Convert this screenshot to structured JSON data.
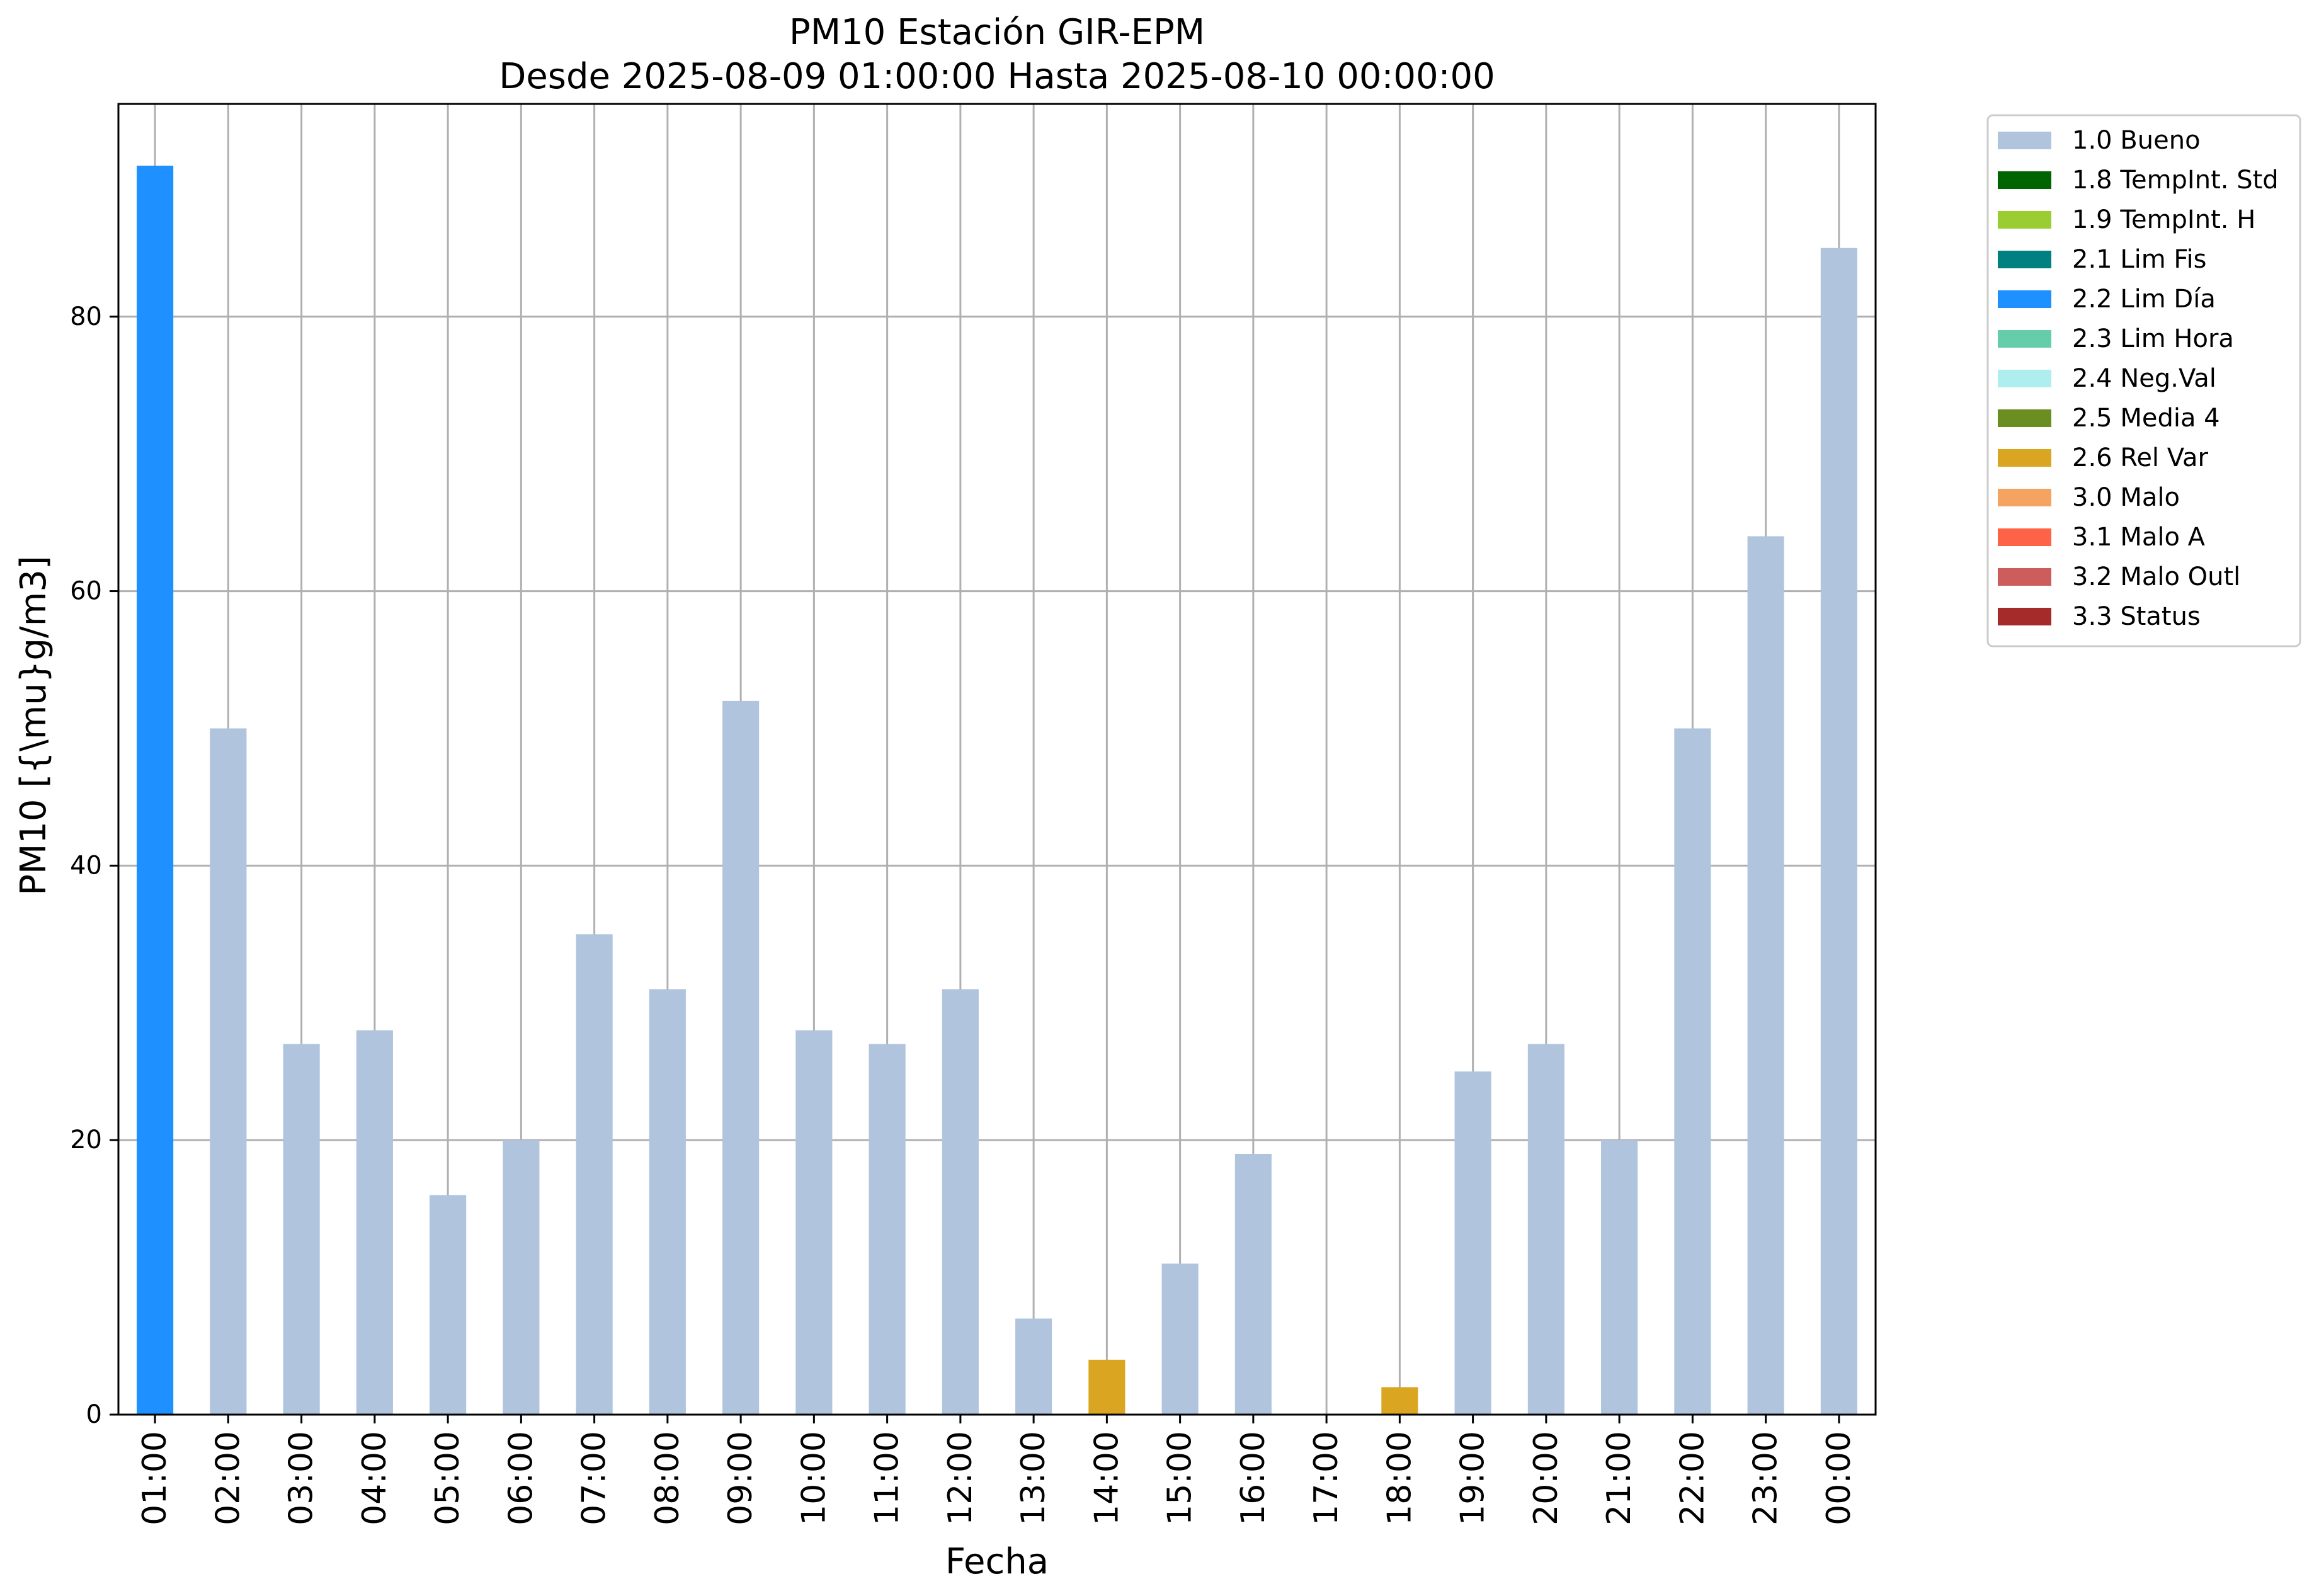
{
  "chart_data": {
    "type": "bar",
    "title": "PM10 Estación GIR-EPM",
    "subtitle": "Desde 2025-08-09 01:00:00 Hasta 2025-08-10 00:00:00",
    "xlabel": "Fecha",
    "ylabel": "PM10 [{\\mu}g/m3]",
    "ylim": [
      0,
      95.5
    ],
    "yticks": [
      0,
      20,
      40,
      60,
      80
    ],
    "grid": true,
    "legend_position": "outside-right-top",
    "categories": [
      "01:00",
      "02:00",
      "03:00",
      "04:00",
      "05:00",
      "06:00",
      "07:00",
      "08:00",
      "09:00",
      "10:00",
      "11:00",
      "12:00",
      "13:00",
      "14:00",
      "15:00",
      "16:00",
      "17:00",
      "18:00",
      "19:00",
      "20:00",
      "21:00",
      "22:00",
      "23:00",
      "00:00"
    ],
    "values": [
      91,
      50,
      27,
      28,
      16,
      20,
      35,
      31,
      52,
      28,
      27,
      31,
      7,
      4,
      11,
      19,
      0,
      2,
      25,
      27,
      20,
      50,
      64,
      85
    ],
    "flags": [
      "2.2 Lim Día",
      "1.0 Bueno",
      "1.0 Bueno",
      "1.0 Bueno",
      "1.0 Bueno",
      "1.0 Bueno",
      "1.0 Bueno",
      "1.0 Bueno",
      "1.0 Bueno",
      "1.0 Bueno",
      "1.0 Bueno",
      "1.0 Bueno",
      "1.0 Bueno",
      "2.6 Rel Var",
      "1.0 Bueno",
      "1.0 Bueno",
      "1.0 Bueno",
      "2.6 Rel Var",
      "1.0 Bueno",
      "1.0 Bueno",
      "1.0 Bueno",
      "1.0 Bueno",
      "1.0 Bueno",
      "1.0 Bueno"
    ],
    "legend": [
      {
        "label": "1.0 Bueno",
        "color": "#b0c4de"
      },
      {
        "label": "1.8 TempInt. Std",
        "color": "#006400"
      },
      {
        "label": "1.9 TempInt. H",
        "color": "#9acd32"
      },
      {
        "label": "2.1 Lim Fis",
        "color": "#008080"
      },
      {
        "label": "2.2 Lim Día",
        "color": "#1e90ff"
      },
      {
        "label": "2.3 Lim Hora",
        "color": "#66cdaa"
      },
      {
        "label": "2.4 Neg.Val",
        "color": "#afeeee"
      },
      {
        "label": "2.5 Media 4",
        "color": "#6b8e23"
      },
      {
        "label": "2.6 Rel Var",
        "color": "#daa520"
      },
      {
        "label": "3.0 Malo",
        "color": "#f4a460"
      },
      {
        "label": "3.1 Malo A",
        "color": "#ff6347"
      },
      {
        "label": "3.2 Malo Outl",
        "color": "#cd5c5c"
      },
      {
        "label": "3.3 Status",
        "color": "#a52a2a"
      }
    ]
  }
}
